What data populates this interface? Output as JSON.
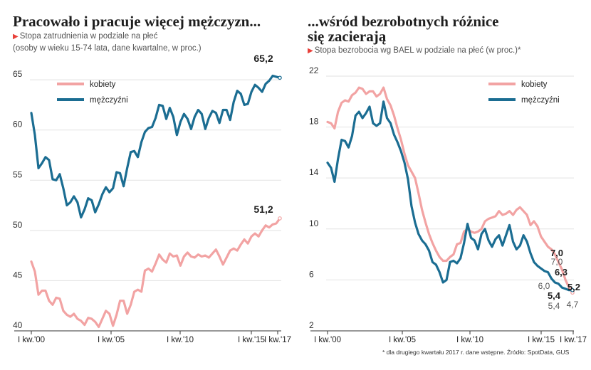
{
  "left_chart": {
    "title": "Pracowało i pracuje więcej mężczyzn...",
    "subtitle": "Stopa zatrudnienia w podziale na płeć",
    "note": "(osoby w wieku 15-74 lata, dane kwartalne, w proc.)"
  },
  "right_chart": {
    "title_line1": "...wśród bezrobotnych różnice",
    "title_line2": "się zacierają",
    "subtitle": "Stopa bezrobocia wg BAEL w podziale na płeć (w proc.)*"
  },
  "footnote": "* dla drugiego kwartału 2017 r. dane wstępne. Źródło: SpotData, GUS",
  "colors": {
    "women": "#f2a3a3",
    "men": "#1b6d92",
    "grid": "#e2e2e2",
    "accent": "#e8403a"
  },
  "chart_data": [
    {
      "type": "line",
      "ylim": [
        40,
        66
      ],
      "yticks": [
        40,
        45,
        50,
        55,
        60,
        65
      ],
      "x_tick_labels": [
        "I kw.'00",
        "I kw.'05",
        "I kw.'10",
        "I kw.'15",
        "I kw.'17"
      ],
      "legend": "top-left",
      "series": [
        {
          "name": "kobiety",
          "values": [
            46.9,
            45.9,
            43.6,
            44.0,
            44.0,
            43.0,
            42.6,
            43.3,
            43.2,
            42.0,
            41.6,
            41.4,
            41.7,
            41.2,
            41.0,
            40.6,
            41.3,
            41.2,
            40.9,
            40.4,
            41.2,
            42.0,
            41.7,
            40.5,
            41.6,
            43.0,
            43.0,
            41.7,
            42.6,
            43.9,
            44.1,
            43.9,
            46.0,
            46.2,
            45.9,
            46.7,
            47.6,
            47.1,
            46.8,
            47.7,
            47.4,
            47.5,
            46.5,
            47.4,
            47.8,
            47.4,
            47.3,
            47.6,
            47.4,
            47.5,
            47.3,
            47.7,
            48.1,
            47.4,
            46.6,
            47.3,
            48.0,
            48.2,
            48.0,
            48.6,
            49.1,
            48.7,
            49.4,
            49.7,
            49.4,
            50.0,
            50.5,
            50.3,
            50.6,
            50.7,
            51.2
          ]
        },
        {
          "name": "mężczyźni",
          "values": [
            61.7,
            59.5,
            56.2,
            56.7,
            57.3,
            57.0,
            55.1,
            55.0,
            55.6,
            54.2,
            52.5,
            52.8,
            53.4,
            52.8,
            51.3,
            52.1,
            53.2,
            53.0,
            51.8,
            52.6,
            53.6,
            54.3,
            53.8,
            54.2,
            55.8,
            55.7,
            54.4,
            56.2,
            57.8,
            57.9,
            57.3,
            58.8,
            59.8,
            60.2,
            60.3,
            61.2,
            62.5,
            62.4,
            61.1,
            62.2,
            61.3,
            59.5,
            60.8,
            61.6,
            61.1,
            60.1,
            61.3,
            62.0,
            61.6,
            60.1,
            61.2,
            61.9,
            61.7,
            60.7,
            62.0,
            62.0,
            61.0,
            62.8,
            63.9,
            63.6,
            62.5,
            62.6,
            63.8,
            64.5,
            64.2,
            63.8,
            64.6,
            64.9,
            65.4,
            65.3,
            65.2
          ]
        }
      ],
      "annotations": [
        "65,2",
        "51,2"
      ]
    },
    {
      "type": "line",
      "ylim": [
        2,
        22.5
      ],
      "yticks": [
        2,
        6,
        10,
        14,
        18,
        22
      ],
      "x_tick_labels": [
        "I kw.'00",
        "I kw.'05",
        "I kw.'10",
        "I kw.'15",
        "I kw.'17"
      ],
      "legend": "top-right",
      "series": [
        {
          "name": "kobiety",
          "values": [
            18.4,
            18.3,
            17.9,
            19.2,
            19.9,
            20.1,
            20.0,
            20.5,
            20.7,
            21.1,
            21.0,
            20.6,
            20.8,
            20.8,
            20.4,
            20.6,
            21.1,
            20.2,
            19.7,
            18.9,
            17.9,
            17.0,
            15.9,
            15.0,
            14.5,
            14.0,
            12.8,
            11.5,
            10.5,
            9.6,
            8.9,
            8.3,
            7.8,
            7.5,
            7.5,
            7.8,
            8.0,
            8.8,
            8.9,
            9.8,
            10.0,
            9.8,
            9.7,
            9.8,
            10.0,
            10.6,
            10.8,
            10.9,
            11.0,
            11.4,
            11.1,
            11.2,
            11.4,
            11.1,
            11.5,
            11.7,
            11.4,
            11.1,
            10.3,
            10.6,
            10.2,
            9.4,
            9.0,
            8.6,
            8.4,
            8.0,
            7.4,
            6.8,
            6.0,
            5.4,
            5.0
          ]
        },
        {
          "name": "mężczyźni",
          "values": [
            15.2,
            14.8,
            13.7,
            15.5,
            17.0,
            16.9,
            16.4,
            17.3,
            18.9,
            19.2,
            18.7,
            19.1,
            19.6,
            18.3,
            18.1,
            18.3,
            20.0,
            18.7,
            18.3,
            17.4,
            16.8,
            16.1,
            15.2,
            13.9,
            11.8,
            10.5,
            9.6,
            9.1,
            8.8,
            8.3,
            7.4,
            7.2,
            6.6,
            5.8,
            6.0,
            7.4,
            7.5,
            7.3,
            7.7,
            8.9,
            10.4,
            9.3,
            9.1,
            8.4,
            9.6,
            10.0,
            9.1,
            8.6,
            9.2,
            9.5,
            8.7,
            9.5,
            10.3,
            9.0,
            8.4,
            8.7,
            9.5,
            9.0,
            8.1,
            7.4,
            7.1,
            6.9,
            6.7,
            6.6,
            6.1,
            5.8,
            5.7,
            5.4,
            5.3,
            5.2,
            5.2
          ]
        }
      ],
      "annotations": [
        "7,0",
        "7,0",
        "6,3",
        "6,0",
        "5,4",
        "5,4",
        "5,2",
        "4,7"
      ]
    }
  ]
}
